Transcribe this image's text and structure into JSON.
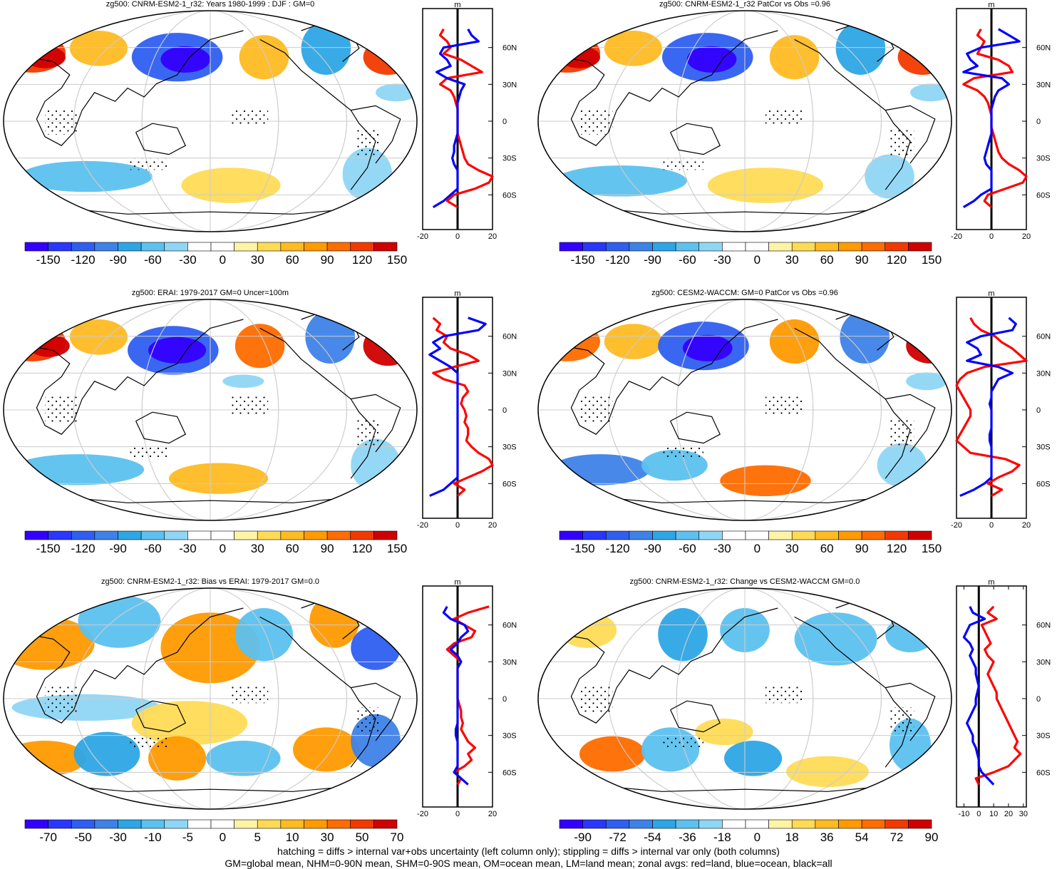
{
  "chart_data": [
    {
      "type": "heatmap",
      "title": "zg500: CNRM-ESM2-1_r32: Years 1980-1999 : DJF : GM=0",
      "colorbar": {
        "labels": [
          "-150",
          "-120",
          "-90",
          "-60",
          "-30",
          "0",
          "30",
          "60",
          "90",
          "120",
          "150"
        ]
      },
      "zonal": {
        "units": "m",
        "x_ticks": [
          "-20",
          "0",
          "20"
        ],
        "xlim": [
          -20,
          20
        ],
        "series": [
          {
            "name": "land",
            "color": "#ff0000",
            "lat": [
              75,
              70,
              65,
              60,
              55,
              50,
              45,
              40,
              35,
              30,
              25,
              20,
              15,
              10,
              5,
              0,
              -5,
              -10,
              -15,
              -20,
              -25,
              -30,
              -35,
              -40,
              -45,
              -50,
              -55,
              -60,
              -65,
              -70
            ],
            "values": [
              -8,
              -10,
              -6,
              -4,
              -8,
              2,
              8,
              14,
              -6,
              -10,
              -4,
              -2,
              -1,
              0,
              0,
              0,
              0,
              0,
              1,
              2,
              3,
              4,
              6,
              12,
              20,
              18,
              10,
              -2,
              -6,
              0
            ]
          },
          {
            "name": "ocean",
            "color": "#0000ff",
            "lat": [
              75,
              70,
              65,
              60,
              55,
              50,
              45,
              40,
              35,
              30,
              25,
              20,
              15,
              10,
              5,
              0,
              -5,
              -10,
              -15,
              -20,
              -25,
              -30,
              -35,
              -40,
              -45,
              -50,
              -55,
              -60,
              -65,
              -70
            ],
            "values": [
              6,
              8,
              12,
              -8,
              -10,
              -6,
              -4,
              -12,
              -6,
              4,
              2,
              1,
              0,
              0,
              0,
              0,
              0,
              0,
              -1,
              -2,
              -2,
              -3,
              -2,
              0,
              0,
              0,
              0,
              -4,
              -8,
              -14
            ]
          }
        ]
      },
      "lat_labels": [
        "60N",
        "30N",
        "0",
        "30S",
        "60S"
      ]
    },
    {
      "type": "heatmap",
      "title": "zg500: CNRM-ESM2-1_r32 PatCor vs Obs =0.96",
      "colorbar": {
        "labels": [
          "-150",
          "-120",
          "-90",
          "-60",
          "-30",
          "0",
          "30",
          "60",
          "90",
          "120",
          "150"
        ]
      },
      "zonal": {
        "units": "m",
        "x_ticks": [
          "-20",
          "0",
          "20"
        ],
        "xlim": [
          -20,
          20
        ],
        "series": [
          {
            "name": "land",
            "color": "#ff0000",
            "lat": [
              75,
              70,
              65,
              60,
              55,
              50,
              45,
              40,
              35,
              30,
              25,
              20,
              15,
              10,
              5,
              0,
              -5,
              -10,
              -15,
              -20,
              -25,
              -30,
              -35,
              -40,
              -45,
              -50,
              -55,
              -60,
              -65,
              -70
            ],
            "values": [
              -6,
              -8,
              -4,
              -6,
              -8,
              4,
              10,
              12,
              -10,
              -16,
              -8,
              -4,
              -2,
              -1,
              0,
              0,
              0,
              1,
              2,
              3,
              4,
              6,
              10,
              16,
              20,
              18,
              8,
              -2,
              -4,
              0
            ]
          },
          {
            "name": "ocean",
            "color": "#0000ff",
            "lat": [
              75,
              70,
              65,
              60,
              55,
              50,
              45,
              40,
              35,
              30,
              25,
              20,
              15,
              10,
              5,
              0,
              -5,
              -10,
              -15,
              -20,
              -25,
              -30,
              -35,
              -40,
              -45,
              -50,
              -55,
              -60,
              -65,
              -70
            ],
            "values": [
              4,
              10,
              16,
              -6,
              -14,
              -12,
              -8,
              -16,
              6,
              10,
              4,
              2,
              1,
              0,
              0,
              0,
              0,
              0,
              -1,
              -2,
              -3,
              -4,
              -3,
              0,
              0,
              0,
              0,
              -6,
              -10,
              -16
            ]
          }
        ]
      },
      "lat_labels": [
        "60N",
        "30N",
        "0",
        "30S",
        "60S"
      ]
    },
    {
      "type": "heatmap",
      "title": "zg500: ERAI: 1979-2017 GM=0 Uncer=100m",
      "colorbar": {
        "labels": [
          "-150",
          "-120",
          "-90",
          "-60",
          "-30",
          "0",
          "30",
          "60",
          "90",
          "120",
          "150"
        ]
      },
      "zonal": {
        "units": "m",
        "x_ticks": [
          "-20",
          "0",
          "20"
        ],
        "xlim": [
          -20,
          20
        ],
        "series": [
          {
            "name": "land",
            "color": "#ff0000",
            "lat": [
              75,
              70,
              65,
              60,
              55,
              50,
              45,
              40,
              35,
              30,
              25,
              20,
              15,
              10,
              5,
              0,
              -5,
              -10,
              -15,
              -20,
              -25,
              -30,
              -35,
              -40,
              -45,
              -50,
              -55,
              -60,
              -65,
              -70
            ],
            "values": [
              -14,
              -10,
              -12,
              -6,
              -8,
              -4,
              6,
              12,
              -2,
              -14,
              -8,
              4,
              6,
              3,
              2,
              4,
              5,
              4,
              6,
              6,
              5,
              8,
              12,
              18,
              20,
              14,
              6,
              -2,
              4,
              0
            ]
          },
          {
            "name": "ocean",
            "color": "#0000ff",
            "lat": [
              75,
              70,
              65,
              60,
              55,
              50,
              45,
              40,
              35,
              30,
              25,
              20,
              15,
              10,
              5,
              0,
              -5,
              -10,
              -15,
              -20,
              -25,
              -30,
              -35,
              -40,
              -45,
              -50,
              -55,
              -60,
              -65,
              -70
            ],
            "values": [
              6,
              16,
              12,
              -8,
              -14,
              -10,
              -16,
              -10,
              -4,
              0,
              0,
              0,
              0,
              0,
              0,
              0,
              0,
              0,
              0,
              0,
              0,
              0,
              0,
              0,
              0,
              0,
              0,
              -4,
              -8,
              -16
            ]
          }
        ]
      },
      "lat_labels": [
        "60N",
        "30N",
        "0",
        "30S",
        "60S"
      ]
    },
    {
      "type": "heatmap",
      "title": "zg500: CESM2-WACCM: GM=0 PatCor vs Obs =0.96",
      "colorbar": {
        "labels": [
          "-150",
          "-120",
          "-90",
          "-60",
          "-30",
          "0",
          "30",
          "60",
          "90",
          "120",
          "150"
        ]
      },
      "zonal": {
        "units": "m",
        "x_ticks": [
          "-20",
          "0",
          "20"
        ],
        "xlim": [
          -20,
          20
        ],
        "series": [
          {
            "name": "land",
            "color": "#ff0000",
            "lat": [
              75,
              70,
              65,
              60,
              55,
              50,
              45,
              40,
              35,
              30,
              25,
              20,
              15,
              10,
              5,
              0,
              -5,
              -10,
              -15,
              -20,
              -25,
              -30,
              -35,
              -40,
              -45,
              -50,
              -55,
              -60,
              -65,
              -70
            ],
            "values": [
              -12,
              -10,
              -6,
              2,
              6,
              12,
              16,
              20,
              -4,
              -14,
              -18,
              -20,
              -18,
              -16,
              -14,
              -12,
              -12,
              -14,
              -16,
              -18,
              -20,
              -16,
              -12,
              8,
              16,
              12,
              4,
              -2,
              6,
              0
            ]
          },
          {
            "name": "ocean",
            "color": "#0000ff",
            "lat": [
              75,
              70,
              65,
              60,
              55,
              50,
              45,
              40,
              35,
              30,
              25,
              20,
              15,
              10,
              5,
              0,
              -5,
              -10,
              -15,
              -20,
              -25,
              -30,
              -35,
              -40,
              -45,
              -50,
              -55,
              -60,
              -65,
              -70
            ],
            "values": [
              10,
              14,
              12,
              -6,
              -14,
              -8,
              -6,
              -14,
              4,
              12,
              4,
              2,
              0,
              0,
              -1,
              0,
              0,
              0,
              0,
              -1,
              -1,
              0,
              0,
              0,
              0,
              0,
              0,
              -4,
              -10,
              -18
            ]
          }
        ]
      },
      "lat_labels": [
        "60N",
        "30N",
        "0",
        "30S",
        "60S"
      ]
    },
    {
      "type": "heatmap",
      "title": "zg500: CNRM-ESM2-1_r32: Bias vs ERAI: 1979-2017 GM=0.0",
      "colorbar": {
        "labels": [
          "-70",
          "-50",
          "-30",
          "-10",
          "-5",
          "0",
          "5",
          "10",
          "30",
          "50",
          "70"
        ]
      },
      "zonal": {
        "units": "m",
        "x_ticks": [
          "-20",
          "0",
          "20"
        ],
        "xlim": [
          -20,
          20
        ],
        "series": [
          {
            "name": "land",
            "color": "#ff0000",
            "lat": [
              75,
              70,
              65,
              60,
              55,
              50,
              45,
              40,
              35,
              30,
              25,
              20,
              15,
              10,
              5,
              0,
              -5,
              -10,
              -15,
              -20,
              -25,
              -30,
              -35,
              -40,
              -45,
              -50,
              -55,
              -60,
              -65,
              -70
            ],
            "values": [
              18,
              6,
              -2,
              4,
              10,
              8,
              -2,
              -6,
              -2,
              2,
              0,
              0,
              0,
              0,
              0,
              0,
              1,
              2,
              2,
              3,
              2,
              4,
              6,
              10,
              6,
              8,
              4,
              -2,
              2,
              0
            ]
          },
          {
            "name": "ocean",
            "color": "#0000ff",
            "lat": [
              75,
              70,
              65,
              60,
              55,
              50,
              45,
              40,
              35,
              30,
              25,
              20,
              15,
              10,
              5,
              0,
              -5,
              -10,
              -15,
              -20,
              -25,
              -30,
              -35,
              -40,
              -45,
              -50,
              -55,
              -60,
              -65,
              -70
            ],
            "values": [
              -6,
              -8,
              -4,
              4,
              6,
              2,
              0,
              -4,
              0,
              2,
              0,
              0,
              0,
              0,
              0,
              0,
              0,
              0,
              0,
              0,
              -1,
              -1,
              0,
              0,
              0,
              0,
              0,
              -2,
              2,
              6
            ]
          }
        ]
      },
      "lat_labels": [
        "60N",
        "30N",
        "0",
        "30S",
        "60S"
      ]
    },
    {
      "type": "heatmap",
      "title": "zg500: CNRM-ESM2-1_r32: Change vs CESM2-WACCM GM=0.0",
      "colorbar": {
        "labels": [
          "-90",
          "-72",
          "-54",
          "-36",
          "-18",
          "0",
          "18",
          "36",
          "54",
          "72",
          "90"
        ]
      },
      "zonal": {
        "units": "m",
        "x_ticks": [
          "-10",
          "0",
          "10",
          "20",
          "30"
        ],
        "xlim": [
          -15,
          32
        ],
        "series": [
          {
            "name": "land",
            "color": "#ff0000",
            "lat": [
              75,
              70,
              65,
              60,
              55,
              50,
              45,
              40,
              35,
              30,
              25,
              20,
              15,
              10,
              5,
              0,
              -5,
              -10,
              -15,
              -20,
              -25,
              -30,
              -35,
              -40,
              -45,
              -50,
              -55,
              -60,
              -65,
              -70
            ],
            "values": [
              10,
              6,
              12,
              2,
              4,
              6,
              8,
              4,
              6,
              10,
              8,
              6,
              8,
              10,
              12,
              12,
              14,
              16,
              18,
              20,
              22,
              24,
              26,
              24,
              28,
              24,
              20,
              10,
              -2,
              0
            ]
          },
          {
            "name": "ocean",
            "color": "#0000ff",
            "lat": [
              75,
              70,
              65,
              60,
              55,
              50,
              45,
              40,
              35,
              30,
              25,
              20,
              15,
              10,
              5,
              0,
              -5,
              -10,
              -15,
              -20,
              -25,
              -30,
              -35,
              -40,
              -45,
              -50,
              -55,
              -60,
              -65,
              -70
            ],
            "values": [
              -6,
              -4,
              4,
              -6,
              -8,
              -10,
              -6,
              -4,
              -6,
              -4,
              -2,
              -2,
              -1,
              0,
              -1,
              -2,
              -2,
              -4,
              -6,
              -8,
              -6,
              -4,
              -4,
              -2,
              -1,
              0,
              0,
              2,
              6,
              10
            ]
          }
        ]
      },
      "lat_labels": [
        "60N",
        "30N",
        "0",
        "30S",
        "60S"
      ]
    }
  ],
  "colors": {
    "palette": [
      "#3300ff",
      "#2a37ff",
      "#2f5ff0",
      "#3e82e8",
      "#2da6e6",
      "#5cc1ef",
      "#8fd6f5",
      "#ffffff",
      "#ffffff",
      "#fff3a6",
      "#ffdb55",
      "#ffbb22",
      "#ff9a00",
      "#ff6c00",
      "#f23a00",
      "#d00000"
    ],
    "land_line": "#ff0000",
    "ocean_line": "#0000ff",
    "all_line": "#000000"
  },
  "footer": {
    "line1": "hatching = diffs > internal var+obs uncertainty (left column only); stippling = diffs > internal var only (both columns)",
    "line2": "GM=global mean, NHM=0-90N mean, SHM=0-90S mean, OM=ocean mean, LM=land mean; zonal avgs: red=land, blue=ocean, black=all"
  }
}
